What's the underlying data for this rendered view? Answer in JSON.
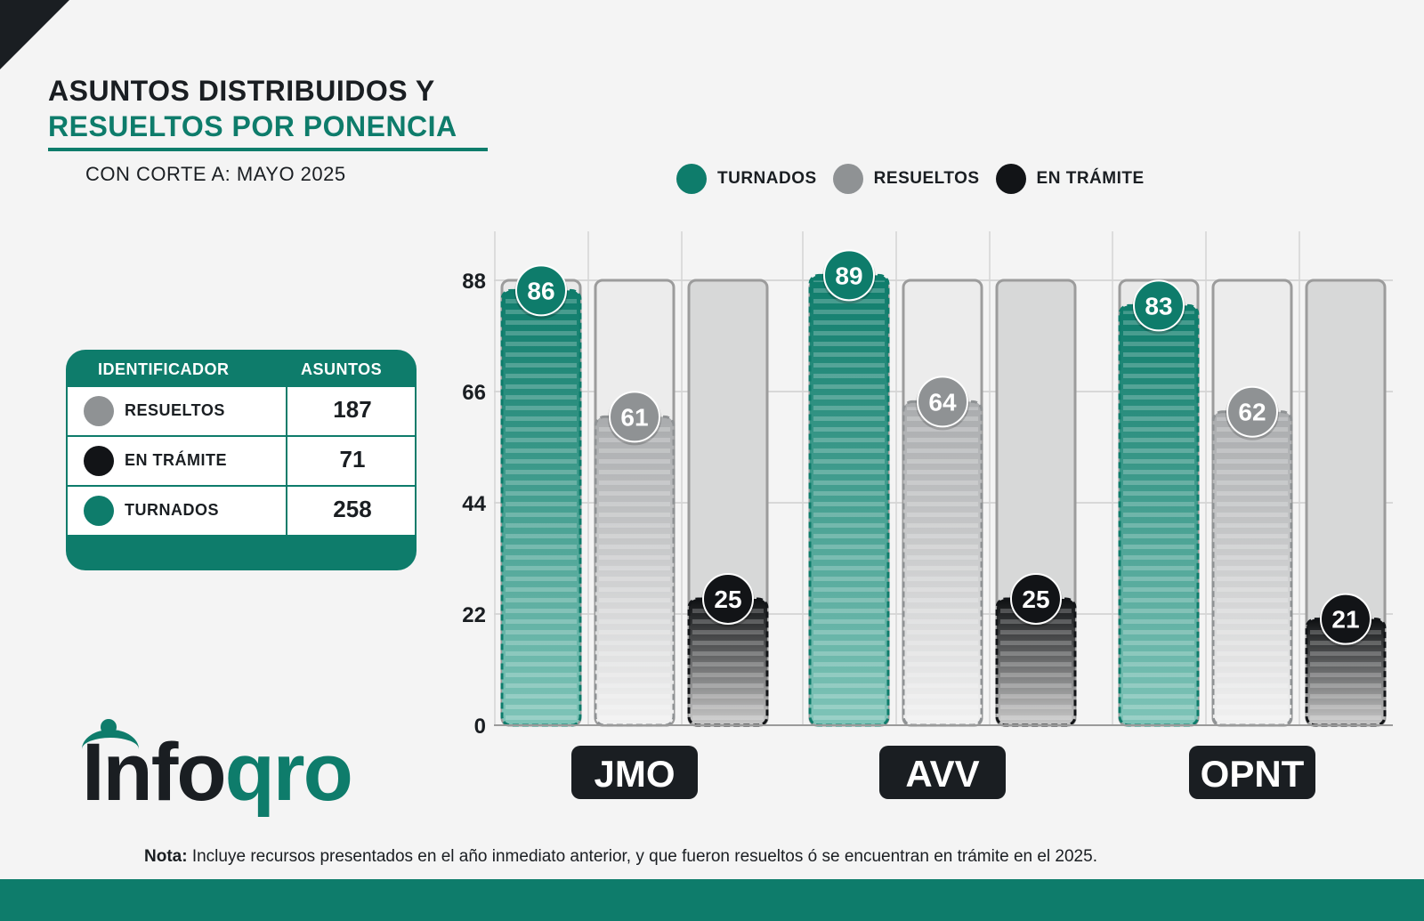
{
  "header": {
    "title_line1": "ASUNTOS DISTRIBUIDOS Y",
    "title_line2": "RESUELTOS POR PONENCIA",
    "subtitle": "CON CORTE A: MAYO 2025"
  },
  "colors": {
    "turnados": "#0e7c6b",
    "resueltos": "#8f9294",
    "en_tramite": "#121417",
    "dark": "#1a1e22"
  },
  "legend": [
    {
      "label": "TURNADOS",
      "color": "#0e7c6b"
    },
    {
      "label": "RESUELTOS",
      "color": "#8f9294"
    },
    {
      "label": "EN TRÁMITE",
      "color": "#121417"
    }
  ],
  "summary_table": {
    "col_identificador": "IDENTIFICADOR",
    "col_asuntos": "ASUNTOS",
    "rows": [
      {
        "label": "RESUELTOS",
        "value": "187",
        "color": "#8f9294"
      },
      {
        "label": "EN TRÁMITE",
        "value": "71",
        "color": "#121417"
      },
      {
        "label": "TURNADOS",
        "value": "258",
        "color": "#0e7c6b"
      }
    ]
  },
  "chart_data": {
    "type": "bar",
    "categories": [
      "JMO",
      "AVV",
      "OPNT"
    ],
    "series": [
      {
        "name": "TURNADOS",
        "values": [
          86,
          89,
          83
        ]
      },
      {
        "name": "RESUELTOS",
        "values": [
          61,
          64,
          62
        ]
      },
      {
        "name": "EN TRÁMITE",
        "values": [
          25,
          25,
          21
        ]
      }
    ],
    "yticks": [
      "0",
      "22",
      "44",
      "66",
      "88"
    ],
    "ylim": [
      0,
      88
    ],
    "grid": true,
    "legend_position": "top"
  },
  "logo": {
    "text_dark": "Info",
    "text_green": "qro"
  },
  "note": {
    "label": "Nota:",
    "text": " Incluye recursos presentados en el año inmediato anterior, y que fueron resueltos ó se encuentran en trámite en el 2025."
  }
}
